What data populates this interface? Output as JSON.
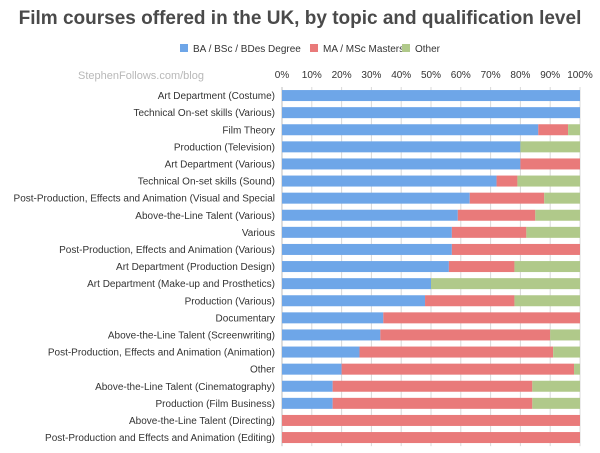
{
  "chart_data": {
    "type": "bar",
    "orientation": "horizontal",
    "stacked": "percent",
    "title": "Film courses offered in the UK, by topic and qualification level",
    "watermark": "StephenFollows.com/blog",
    "legend_position": "top",
    "xlim": [
      0,
      100
    ],
    "x_ticks": [
      "0%",
      "10%",
      "20%",
      "30%",
      "40%",
      "50%",
      "60%",
      "70%",
      "80%",
      "90%",
      "100%"
    ],
    "grid": true,
    "categories": [
      "Art Department (Costume)",
      "Technical On-set skills (Various)",
      "Film Theory",
      "Production (Television)",
      "Art Department (Various)",
      "Technical On-set skills (Sound)",
      "Post-Production, Effects and Animation (Visual and Special",
      "Above-the-Line Talent (Various)",
      "Various",
      "Post-Production, Effects and Animation (Various)",
      "Art Department (Production Design)",
      "Art Department (Make-up and Prosthetics)",
      "Production (Various)",
      "Documentary",
      "Above-the-Line Talent (Screenwriting)",
      "Post-Production, Effects and Animation (Animation)",
      "Other",
      "Above-the-Line Talent (Cinematography)",
      "Production (Film Business)",
      "Above-the-Line Talent (Directing)",
      "Post-Production and Effects and Animation (Editing)"
    ],
    "series": [
      {
        "name": "BA / BSc / BDes Degree",
        "color": "#6ea6e8",
        "values": [
          100,
          100,
          86,
          80,
          80,
          72,
          63,
          59,
          57,
          57,
          56,
          50,
          48,
          34,
          33,
          26,
          20,
          17,
          17,
          0,
          0
        ]
      },
      {
        "name": "MA / MSc Masters",
        "color": "#e97a7a",
        "values": [
          0,
          0,
          10,
          0,
          20,
          7,
          25,
          26,
          25,
          43,
          22,
          0,
          30,
          66,
          57,
          65,
          78,
          67,
          67,
          100,
          100
        ]
      },
      {
        "name": "Other",
        "color": "#b0c98a",
        "values": [
          0,
          0,
          4,
          20,
          0,
          21,
          12,
          15,
          18,
          0,
          22,
          50,
          22,
          0,
          10,
          9,
          2,
          16,
          16,
          0,
          0
        ]
      }
    ]
  }
}
